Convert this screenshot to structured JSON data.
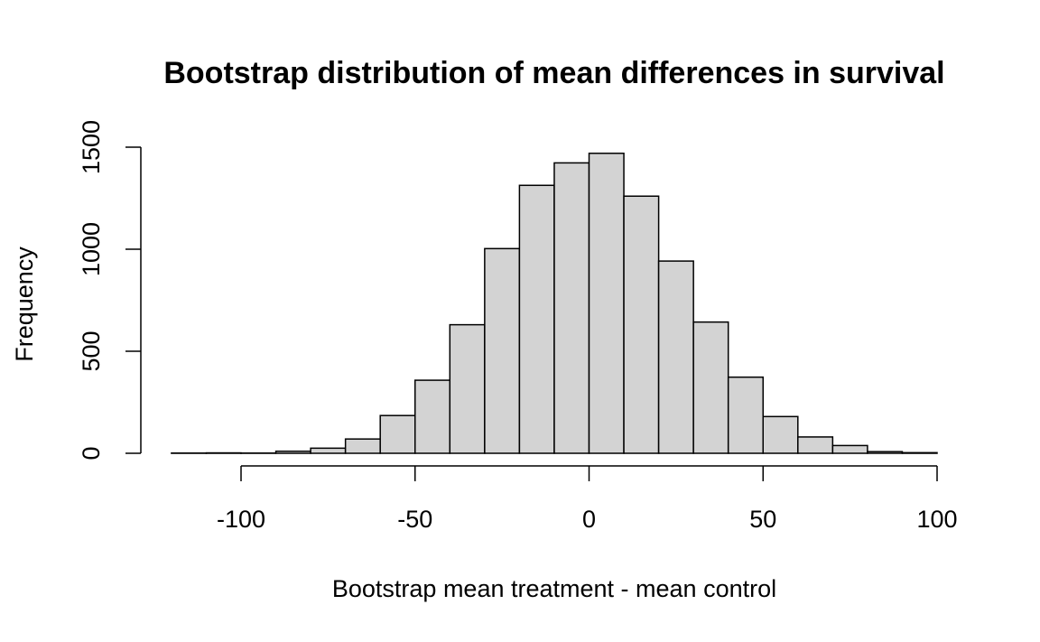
{
  "chart_data": {
    "type": "bar",
    "title": "Bootstrap distribution of mean differences in survival",
    "xlabel": "Bootstrap mean treatment - mean control",
    "ylabel": "Frequency",
    "xlim": [
      -120,
      100
    ],
    "ylim": [
      0,
      1500
    ],
    "x_ticks": [
      -100,
      -50,
      0,
      50,
      100
    ],
    "y_ticks": [
      0,
      500,
      1000,
      1500
    ],
    "bin_width": 10,
    "bins": [
      {
        "start": -120,
        "end": -110,
        "count": 1
      },
      {
        "start": -110,
        "end": -100,
        "count": 2
      },
      {
        "start": -100,
        "end": -90,
        "count": 1
      },
      {
        "start": -90,
        "end": -80,
        "count": 10
      },
      {
        "start": -80,
        "end": -70,
        "count": 25
      },
      {
        "start": -70,
        "end": -60,
        "count": 70
      },
      {
        "start": -60,
        "end": -50,
        "count": 185
      },
      {
        "start": -50,
        "end": -40,
        "count": 358
      },
      {
        "start": -40,
        "end": -30,
        "count": 630
      },
      {
        "start": -30,
        "end": -20,
        "count": 1003
      },
      {
        "start": -20,
        "end": -10,
        "count": 1313
      },
      {
        "start": -10,
        "end": 0,
        "count": 1423
      },
      {
        "start": 0,
        "end": 10,
        "count": 1470
      },
      {
        "start": 10,
        "end": 20,
        "count": 1260
      },
      {
        "start": 20,
        "end": 30,
        "count": 942
      },
      {
        "start": 30,
        "end": 40,
        "count": 643
      },
      {
        "start": 40,
        "end": 50,
        "count": 373
      },
      {
        "start": 50,
        "end": 60,
        "count": 180
      },
      {
        "start": 60,
        "end": 70,
        "count": 80
      },
      {
        "start": 70,
        "end": 80,
        "count": 38
      },
      {
        "start": 80,
        "end": 90,
        "count": 8
      },
      {
        "start": 90,
        "end": 100,
        "count": 3
      }
    ],
    "grid": false,
    "legend": "none"
  }
}
